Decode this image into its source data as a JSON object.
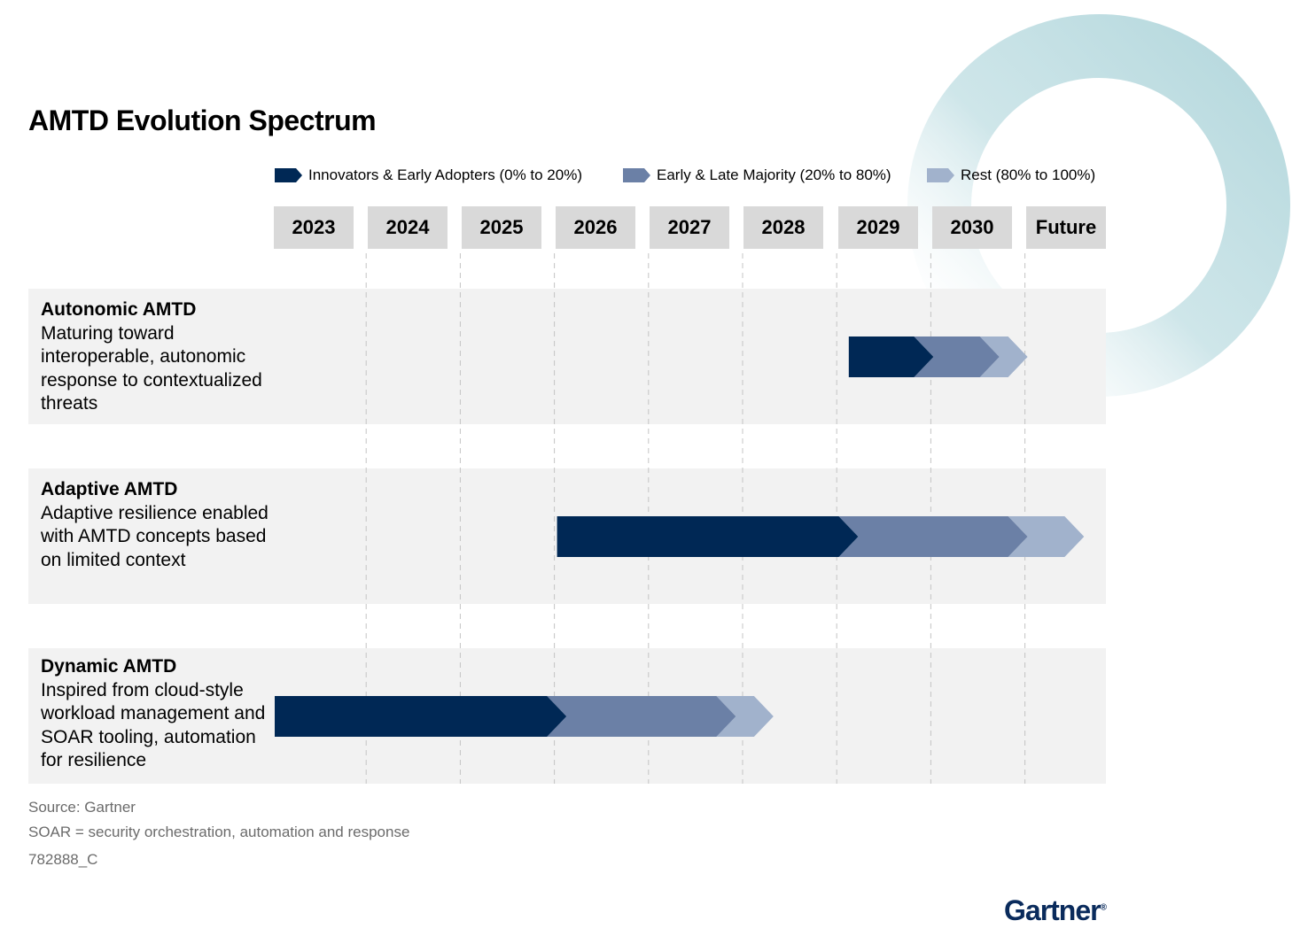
{
  "chart_data": {
    "type": "gantt",
    "title": "AMTD Evolution Spectrum",
    "categories": [
      "2023",
      "2024",
      "2025",
      "2026",
      "2027",
      "2028",
      "2029",
      "2030",
      "Future"
    ],
    "legend": {
      "placement": "top",
      "items": [
        {
          "label": "Innovators & Early Adopters (0% to 20%)",
          "color": "#002855"
        },
        {
          "label": "Early & Late Majority (20% to 80%)",
          "color": "#6b80a6"
        },
        {
          "label": "Rest (80% to 100%)",
          "color": "#a1b2cc"
        }
      ]
    },
    "rows": [
      {
        "name": "Autonomic AMTD",
        "description": "Maturing toward interoperable, autonomic response to contextualized threats",
        "segments": [
          {
            "phase": "Innovators & Early Adopters (0% to 20%)",
            "start": 2029.1,
            "end": 2030.0
          },
          {
            "phase": "Early & Late Majority (20% to 80%)",
            "start": 2030.0,
            "end": 2030.7
          },
          {
            "phase": "Rest (80% to 100%)",
            "start": 2030.7,
            "end": 2031.0
          }
        ]
      },
      {
        "name": "Adaptive AMTD",
        "description": "Adaptive resilience enabled with AMTD concepts based on limited context",
        "segments": [
          {
            "phase": "Innovators & Early Adopters (0% to 20%)",
            "start": 2026.0,
            "end": 2029.2
          },
          {
            "phase": "Early & Late Majority (20% to 80%)",
            "start": 2029.2,
            "end": 2031.0
          },
          {
            "phase": "Rest (80% to 100%)",
            "start": 2031.0,
            "end": 2031.6
          }
        ]
      },
      {
        "name": "Dynamic AMTD",
        "description": "Inspired from cloud-style workload management and SOAR tooling, automation for resilience",
        "segments": [
          {
            "phase": "Innovators & Early Adopters (0% to 20%)",
            "start": 2023.0,
            "end": 2026.1
          },
          {
            "phase": "Early & Late Majority (20% to 80%)",
            "start": 2026.1,
            "end": 2027.9
          },
          {
            "phase": "Rest (80% to 100%)",
            "start": 2027.9,
            "end": 2028.3
          }
        ]
      }
    ],
    "grid": "dashed vertical"
  },
  "notes": {
    "source": "Source: Gartner",
    "abbreviation": "SOAR = security orchestration, automation and response",
    "id": "782888_C"
  },
  "logo": {
    "text": "Gartner",
    "mark": "®"
  },
  "colors": {
    "ring": "#bfdde2",
    "band": "#f2f2f2",
    "year_box": "#d9d9d9"
  }
}
